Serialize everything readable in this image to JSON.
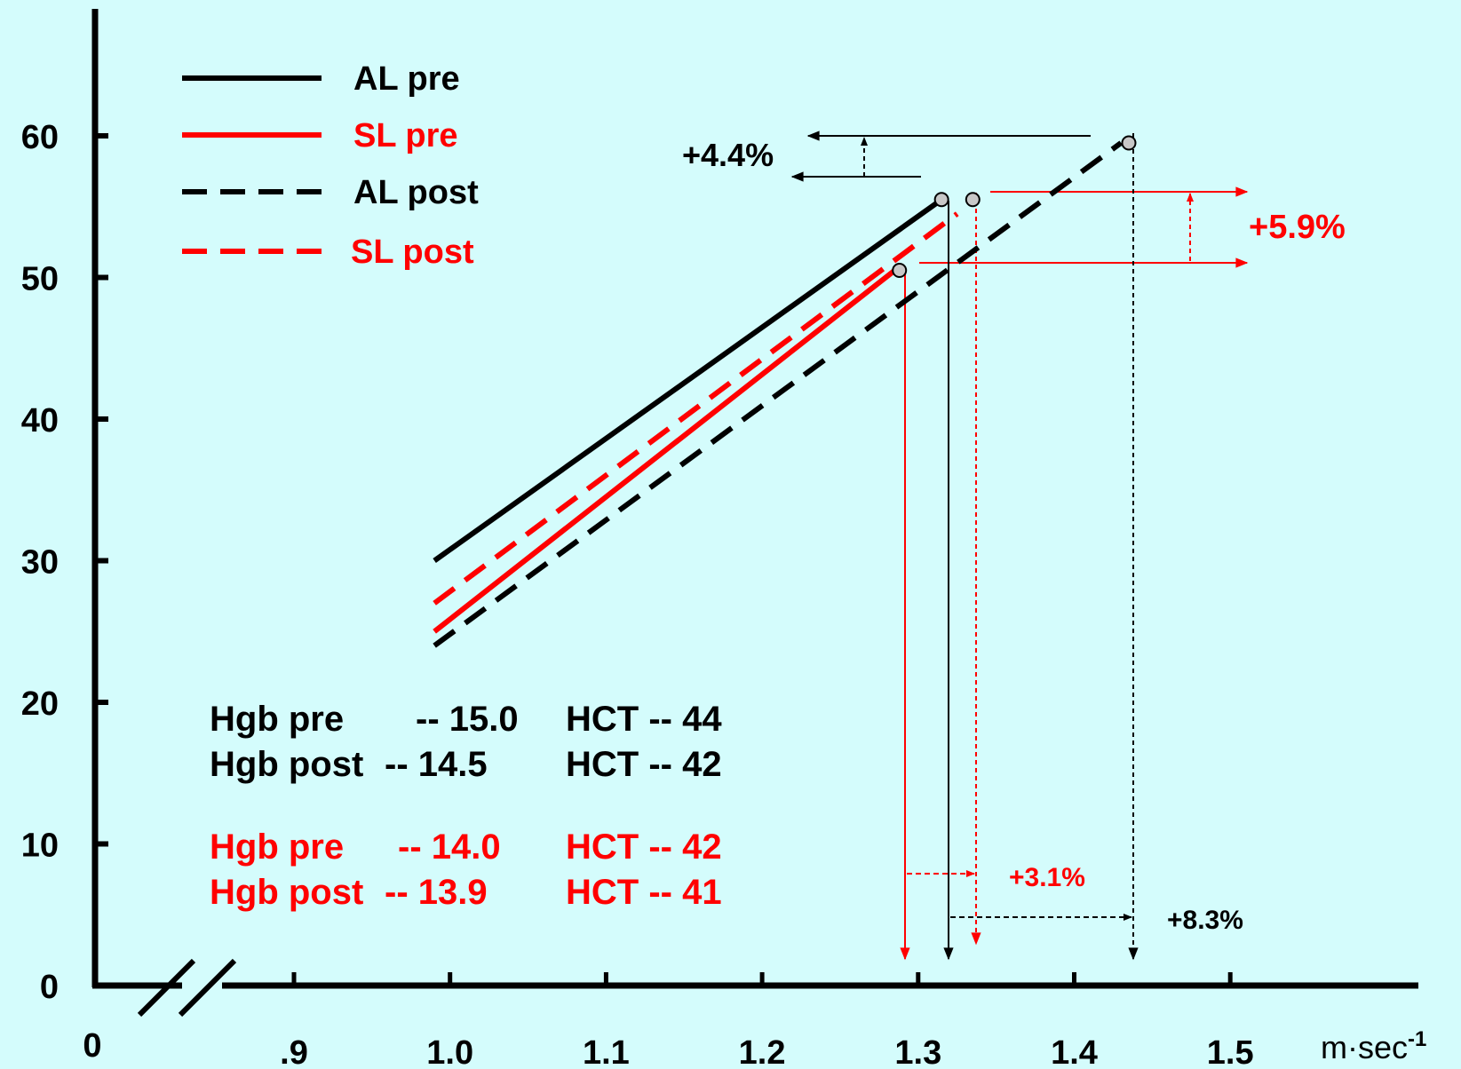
{
  "chart_data": {
    "type": "line",
    "title": "",
    "xlabel": "",
    "ylabel": "",
    "x_unit": "m·sec",
    "x_unit_exponent": "-1",
    "xlim": [
      0.8,
      1.7
    ],
    "ylim": [
      0,
      60
    ],
    "x_origin_label": "0",
    "x_ticks": [
      0.9,
      1.0,
      1.1,
      1.2,
      1.3,
      1.4,
      1.5
    ],
    "x_tick_labels": [
      ".9",
      "1.0",
      "1.1",
      "1.2",
      "1.3",
      "1.4",
      "1.5"
    ],
    "y_ticks": [
      0,
      10,
      20,
      30,
      40,
      50,
      60
    ],
    "y_tick_labels": [
      "0",
      "10",
      "20",
      "30",
      "40",
      "50",
      "60"
    ],
    "axis_break": true,
    "grid": false,
    "legend_position": "top-left",
    "series": [
      {
        "name": "AL pre",
        "color": "#000000",
        "dashed": false,
        "x": [
          0.99,
          1.315
        ],
        "y": [
          30,
          55.5
        ],
        "marker": [
          1.315,
          55.5
        ]
      },
      {
        "name": "SL pre",
        "color": "#ff0000",
        "dashed": false,
        "x": [
          0.99,
          1.285
        ],
        "y": [
          25,
          50.5
        ],
        "marker": [
          1.288,
          50.5
        ]
      },
      {
        "name": "AL post",
        "color": "#000000",
        "dashed": true,
        "x": [
          0.99,
          1.43
        ],
        "y": [
          24,
          59.5
        ],
        "marker": [
          1.435,
          59.5
        ]
      },
      {
        "name": "SL post",
        "color": "#ff0000",
        "dashed": true,
        "x": [
          0.99,
          1.325
        ],
        "y": [
          27,
          54.5
        ],
        "marker": [
          1.335,
          55.5
        ]
      }
    ],
    "annotations": [
      {
        "text": "+4.4%",
        "color": "#000000"
      },
      {
        "text": "+5.9%",
        "color": "#ff0000"
      },
      {
        "text": "+3.1%",
        "color": "#ff0000"
      },
      {
        "text": "+8.3%",
        "color": "#000000"
      }
    ],
    "info_rows": [
      {
        "label": "Hgb pre",
        "hgb": "-- 15.0",
        "hct": "HCT -- 44",
        "color": "#000000"
      },
      {
        "label": "Hgb post",
        "hgb": "-- 14.5",
        "hct": "HCT -- 42",
        "color": "#000000"
      },
      {
        "label": "Hgb pre",
        "hgb": "-- 14.0",
        "hct": "HCT -- 42",
        "color": "#ff0000"
      },
      {
        "label": "Hgb post",
        "hgb": "-- 13.9",
        "hct": "HCT -- 41",
        "color": "#ff0000"
      }
    ]
  }
}
